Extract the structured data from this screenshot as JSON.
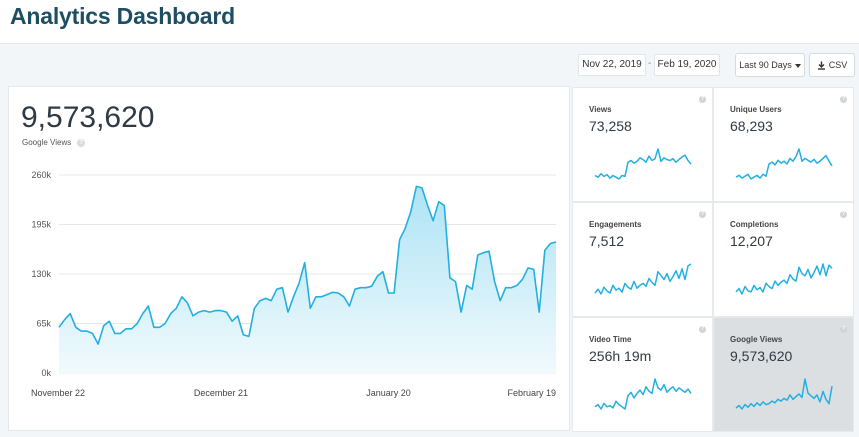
{
  "header": {
    "title": "Analytics Dashboard"
  },
  "toolbar": {
    "start_date": "Nov 22, 2019",
    "separator": "-",
    "end_date": "Feb 19, 2020",
    "range_label": "Last 90 Days",
    "csv_label": "CSV"
  },
  "main": {
    "value": "9,573,620",
    "label": "Google Views",
    "help": "?"
  },
  "tiles": [
    {
      "label": "Views",
      "value": "73,258",
      "help": "?"
    },
    {
      "label": "Unique Users",
      "value": "68,293",
      "help": "?"
    },
    {
      "label": "Engagements",
      "value": "7,512",
      "help": "?"
    },
    {
      "label": "Completions",
      "value": "12,207",
      "help": "?"
    },
    {
      "label": "Video Time",
      "value": "256h 19m",
      "help": "?"
    },
    {
      "label": "Google Views",
      "value": "9,573,620",
      "help": "?"
    }
  ],
  "colors": {
    "line": "#22b0e0",
    "fill_top": "#aee3f5",
    "fill_bottom": "#f1fafd",
    "accent": "#1f4e63"
  },
  "chart_data": {
    "type": "area",
    "title": "Google Views",
    "y_ticks": [
      "260k",
      "195k",
      "130k",
      "65k",
      "0k"
    ],
    "ylim": [
      0,
      260000
    ],
    "x_ticks": [
      {
        "label": "November 22",
        "index": 0
      },
      {
        "label": "December 21",
        "index": 29
      },
      {
        "label": "January 20",
        "index": 59
      },
      {
        "label": "February 19",
        "index": 89
      }
    ],
    "values": [
      60000,
      70000,
      78000,
      60000,
      55000,
      55000,
      52000,
      38000,
      62000,
      68000,
      52000,
      52000,
      58000,
      58000,
      65000,
      78000,
      88000,
      60000,
      60000,
      65000,
      78000,
      85000,
      100000,
      92000,
      75000,
      80000,
      82000,
      80000,
      82000,
      82000,
      80000,
      68000,
      75000,
      50000,
      48000,
      85000,
      95000,
      98000,
      95000,
      110000,
      112000,
      80000,
      100000,
      118000,
      145000,
      85000,
      100000,
      100000,
      103000,
      106000,
      105000,
      100000,
      88000,
      110000,
      112000,
      112000,
      114000,
      127000,
      133000,
      105000,
      105000,
      175000,
      190000,
      212000,
      245000,
      243000,
      220000,
      200000,
      225000,
      220000,
      125000,
      120000,
      80000,
      115000,
      110000,
      155000,
      158000,
      160000,
      120000,
      95000,
      112000,
      112000,
      115000,
      123000,
      138000,
      136000,
      80000,
      161000,
      170000,
      172000
    ]
  },
  "sparklines": [
    [
      40,
      38,
      42,
      39,
      41,
      37,
      40,
      38,
      36,
      40,
      39,
      55,
      57,
      54,
      56,
      60,
      58,
      55,
      62,
      57,
      59,
      70,
      56,
      60,
      58,
      57,
      59,
      55,
      58,
      61,
      63,
      57,
      53
    ],
    [
      38,
      40,
      37,
      39,
      41,
      36,
      38,
      40,
      37,
      41,
      39,
      52,
      54,
      51,
      56,
      53,
      55,
      52,
      58,
      55,
      60,
      68,
      55,
      58,
      56,
      54,
      57,
      53,
      55,
      58,
      61,
      55,
      50
    ],
    [
      30,
      34,
      29,
      36,
      32,
      30,
      38,
      33,
      35,
      31,
      40,
      36,
      34,
      42,
      35,
      38,
      40,
      37,
      45,
      41,
      38,
      52,
      48,
      44,
      50,
      42,
      47,
      53,
      45,
      55,
      44,
      58,
      60
    ],
    [
      30,
      33,
      28,
      35,
      31,
      30,
      36,
      32,
      34,
      30,
      38,
      35,
      33,
      40,
      36,
      39,
      41,
      38,
      46,
      42,
      40,
      53,
      47,
      45,
      51,
      43,
      48,
      54,
      46,
      56,
      45,
      55,
      52
    ],
    [
      30,
      32,
      28,
      33,
      30,
      31,
      29,
      35,
      32,
      30,
      28,
      40,
      43,
      38,
      42,
      45,
      41,
      48,
      44,
      42,
      55,
      47,
      45,
      50,
      43,
      46,
      48,
      44,
      47,
      45,
      43,
      46,
      42
    ],
    [
      25,
      28,
      24,
      29,
      26,
      30,
      27,
      31,
      28,
      32,
      29,
      30,
      33,
      31,
      35,
      33,
      36,
      34,
      40,
      35,
      38,
      41,
      37,
      58,
      42,
      39,
      36,
      40,
      32,
      44,
      35,
      30,
      50
    ]
  ]
}
